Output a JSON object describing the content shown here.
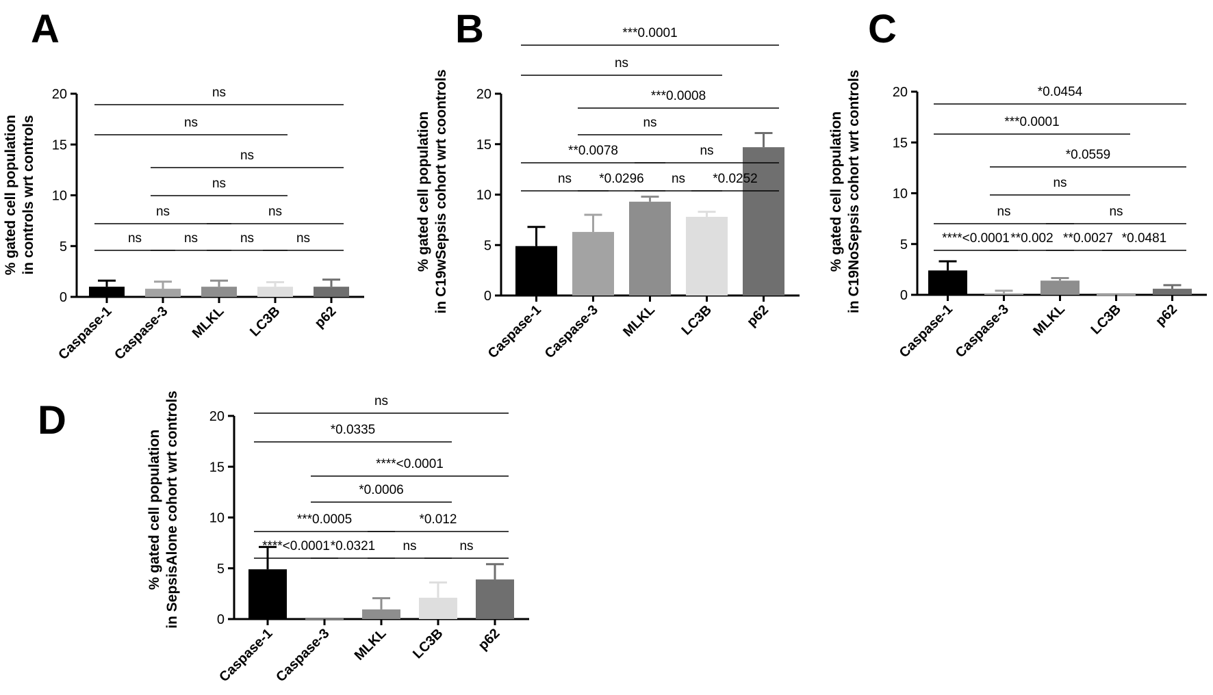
{
  "colors": {
    "Caspase-1": "#000000",
    "Caspase-3": "#a3a3a3",
    "MLKL": "#8e8e8e",
    "LC3B": "#dedede",
    "p62": "#6f6f6f"
  },
  "chart_data": [
    {
      "panel": "A",
      "type": "bar",
      "ylabel": [
        "% gated cell population",
        "in controls wrt controls"
      ],
      "ylim": [
        0,
        20
      ],
      "yticks": [
        "0",
        "5",
        "10",
        "15",
        "20"
      ],
      "categories": [
        "Caspase-1",
        "Caspase-3",
        "MLKL",
        "LC3B",
        "p62"
      ],
      "values": [
        1.0,
        0.8,
        1.0,
        1.0,
        1.0
      ],
      "errors": [
        0.6,
        0.7,
        0.6,
        0.45,
        0.7
      ],
      "comparisons": [
        {
          "from": "Caspase-1",
          "to": "p62",
          "label": "ns"
        },
        {
          "from": "Caspase-1",
          "to": "LC3B",
          "label": "ns"
        },
        {
          "from": "Caspase-3",
          "to": "p62",
          "label": "ns"
        },
        {
          "from": "Caspase-3",
          "to": "LC3B",
          "label": "ns"
        },
        {
          "from": "Caspase-1",
          "to": "MLKL",
          "label": "ns"
        },
        {
          "from": "MLKL",
          "to": "p62",
          "label": "ns"
        },
        {
          "from": "Caspase-1",
          "to": "Caspase-3",
          "label": "ns"
        },
        {
          "from": "Caspase-3",
          "to": "MLKL",
          "label": "ns"
        },
        {
          "from": "MLKL",
          "to": "LC3B",
          "label": "ns"
        },
        {
          "from": "LC3B",
          "to": "p62",
          "label": "ns"
        }
      ]
    },
    {
      "panel": "B",
      "type": "bar",
      "ylabel": [
        "% gated cell population",
        "in C19wSepsis cohort wrt coontrols"
      ],
      "ylim": [
        0,
        20
      ],
      "yticks": [
        "0",
        "5",
        "10",
        "15",
        "20"
      ],
      "categories": [
        "Caspase-1",
        "Caspase-3",
        "MLKL",
        "LC3B",
        "p62"
      ],
      "values": [
        4.9,
        6.3,
        9.3,
        7.8,
        14.7
      ],
      "errors": [
        1.9,
        1.7,
        0.5,
        0.5,
        1.4
      ],
      "comparisons": [
        {
          "from": "Caspase-1",
          "to": "p62",
          "label": "***0.0001"
        },
        {
          "from": "Caspase-1",
          "to": "LC3B",
          "label": "ns"
        },
        {
          "from": "Caspase-3",
          "to": "p62",
          "label": "***0.0008"
        },
        {
          "from": "Caspase-3",
          "to": "LC3B",
          "label": "ns"
        },
        {
          "from": "Caspase-1",
          "to": "MLKL",
          "label": "**0.0078"
        },
        {
          "from": "MLKL",
          "to": "p62",
          "label": "ns"
        },
        {
          "from": "Caspase-1",
          "to": "Caspase-3",
          "label": "ns"
        },
        {
          "from": "Caspase-3",
          "to": "MLKL",
          "label": "*0.0296"
        },
        {
          "from": "MLKL",
          "to": "LC3B",
          "label": "ns"
        },
        {
          "from": "LC3B",
          "to": "p62",
          "label": "*0.0252"
        }
      ]
    },
    {
      "panel": "C",
      "type": "bar",
      "ylabel": [
        "% gated cell population",
        "in C19NoSepsis cohort wrt controls"
      ],
      "ylim": [
        0,
        20
      ],
      "yticks": [
        "0",
        "5",
        "10",
        "15",
        "20"
      ],
      "categories": [
        "Caspase-1",
        "Caspase-3",
        "MLKL",
        "LC3B",
        "p62"
      ],
      "values": [
        2.4,
        0.15,
        1.4,
        0.05,
        0.6
      ],
      "errors": [
        0.9,
        0.25,
        0.25,
        0.0,
        0.35
      ],
      "comparisons": [
        {
          "from": "Caspase-1",
          "to": "p62",
          "label": "*0.0454"
        },
        {
          "from": "Caspase-1",
          "to": "LC3B",
          "label": "***0.0001"
        },
        {
          "from": "Caspase-3",
          "to": "p62",
          "label": "*0.0559"
        },
        {
          "from": "Caspase-3",
          "to": "LC3B",
          "label": "ns"
        },
        {
          "from": "Caspase-1",
          "to": "MLKL",
          "label": "ns"
        },
        {
          "from": "MLKL",
          "to": "p62",
          "label": "ns"
        },
        {
          "from": "Caspase-1",
          "to": "Caspase-3",
          "label": "****<0.0001"
        },
        {
          "from": "Caspase-3",
          "to": "MLKL",
          "label": "**0.002"
        },
        {
          "from": "MLKL",
          "to": "LC3B",
          "label": "**0.0027"
        },
        {
          "from": "LC3B",
          "to": "p62",
          "label": "*0.0481"
        }
      ]
    },
    {
      "panel": "D",
      "type": "bar",
      "ylabel": [
        "% gated cell population",
        "in SepsisAlone cohort wrt controls"
      ],
      "ylim": [
        0,
        20
      ],
      "yticks": [
        "0",
        "5",
        "10",
        "15",
        "20"
      ],
      "categories": [
        "Caspase-1",
        "Caspase-3",
        "MLKL",
        "LC3B",
        "p62"
      ],
      "values": [
        4.9,
        0.05,
        0.95,
        2.1,
        3.9
      ],
      "errors": [
        2.2,
        0.0,
        1.1,
        1.5,
        1.5
      ],
      "comparisons": [
        {
          "from": "Caspase-1",
          "to": "p62",
          "label": "ns"
        },
        {
          "from": "Caspase-1",
          "to": "LC3B",
          "label": "*0.0335"
        },
        {
          "from": "Caspase-3",
          "to": "p62",
          "label": "****<0.0001"
        },
        {
          "from": "Caspase-3",
          "to": "LC3B",
          "label": "*0.0006"
        },
        {
          "from": "Caspase-1",
          "to": "MLKL",
          "label": "***0.0005"
        },
        {
          "from": "MLKL",
          "to": "p62",
          "label": "*0.012"
        },
        {
          "from": "Caspase-1",
          "to": "Caspase-3",
          "label": "****<0.0001"
        },
        {
          "from": "Caspase-3",
          "to": "MLKL",
          "label": "*0.0321"
        },
        {
          "from": "MLKL",
          "to": "LC3B",
          "label": "ns"
        },
        {
          "from": "LC3B",
          "to": "p62",
          "label": "ns"
        }
      ]
    }
  ]
}
